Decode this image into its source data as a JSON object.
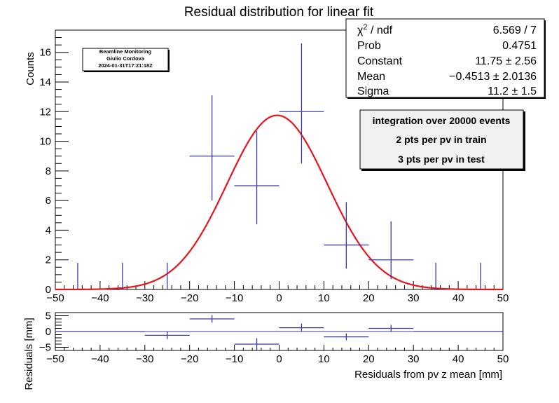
{
  "title": "Residual distribution for linear fit",
  "stats": [
    {
      "label": "χ² / ndf",
      "label_main": "χ",
      "label_sup": "2",
      "label_rest": " / ndf",
      "value": "6.569 / 7"
    },
    {
      "label": "Prob",
      "value": "0.4751"
    },
    {
      "label": "Constant",
      "value": "11.75 ± 2.56"
    },
    {
      "label": "Mean",
      "value": "−0.4513 ± 2.0136"
    },
    {
      "label": "Sigma",
      "value": "11.2 ± 1.5"
    }
  ],
  "info_box": [
    "integration over 20000 events",
    "2 pts per pv in train",
    "3 pts per pv in test"
  ],
  "stamp": [
    "Beamline Monitoring",
    "Giulio Cordova",
    "2024-01-31T17:21:18Z"
  ],
  "colors": {
    "data": "#3b3ba8",
    "fit": "#e8141c",
    "frame": "#000000"
  },
  "chart_data": [
    {
      "type": "scatter",
      "title": "Residual distribution for linear fit",
      "ylabel": "Counts",
      "xlim": [
        -50,
        50
      ],
      "ylim": [
        0,
        17.5
      ],
      "x_ticks": [
        -50,
        -40,
        -30,
        -20,
        -10,
        0,
        10,
        20,
        30,
        40,
        50
      ],
      "y_ticks": [
        0,
        2,
        4,
        6,
        8,
        10,
        12,
        14,
        16
      ],
      "grid": false,
      "bins": [
        {
          "x": -45,
          "xerr": 5,
          "y": 0,
          "yerr_low": 0,
          "yerr_high": 1.8
        },
        {
          "x": -35,
          "xerr": 5,
          "y": 0,
          "yerr_low": 0,
          "yerr_high": 1.8
        },
        {
          "x": -25,
          "xerr": 5,
          "y": 0,
          "yerr_low": 0,
          "yerr_high": 1.8
        },
        {
          "x": -15,
          "xerr": 5,
          "y": 9,
          "yerr_low": 3.0,
          "yerr_high": 4.1
        },
        {
          "x": -5,
          "xerr": 5,
          "y": 7,
          "yerr_low": 2.6,
          "yerr_high": 3.7
        },
        {
          "x": 5,
          "xerr": 5,
          "y": 12,
          "yerr_low": 3.5,
          "yerr_high": 4.6
        },
        {
          "x": 15,
          "xerr": 5,
          "y": 3,
          "yerr_low": 1.6,
          "yerr_high": 2.9
        },
        {
          "x": 25,
          "xerr": 5,
          "y": 2,
          "yerr_low": 1.3,
          "yerr_high": 2.6
        },
        {
          "x": 35,
          "xerr": 5,
          "y": 0,
          "yerr_low": 0,
          "yerr_high": 1.8
        },
        {
          "x": 45,
          "xerr": 5,
          "y": 0,
          "yerr_low": 0,
          "yerr_high": 1.8
        }
      ],
      "fit": {
        "type": "gaussian",
        "constant": 11.75,
        "mean": -0.4513,
        "sigma": 11.2
      }
    },
    {
      "type": "scatter",
      "xlabel": "Residuals from pv z mean  [mm]",
      "ylabel": "Residuals [mm]",
      "xlim": [
        -50,
        50
      ],
      "ylim": [
        -6,
        6
      ],
      "x_ticks": [
        -50,
        -40,
        -30,
        -20,
        -10,
        0,
        10,
        20,
        30,
        40,
        50
      ],
      "y_ticks": [
        -5,
        0,
        5
      ],
      "grid": false,
      "bins": [
        {
          "x": -45,
          "xerr": 5,
          "y": 0,
          "yerr": 0
        },
        {
          "x": -35,
          "xerr": 5,
          "y": 0,
          "yerr": 0
        },
        {
          "x": -25,
          "xerr": 5,
          "y": -1.2,
          "yerr": 1.2
        },
        {
          "x": -15,
          "xerr": 5,
          "y": 4.0,
          "yerr": 1.2
        },
        {
          "x": -5,
          "xerr": 5,
          "y": -4.0,
          "yerr": 1.9
        },
        {
          "x": 5,
          "xerr": 5,
          "y": 1.2,
          "yerr": 1.3
        },
        {
          "x": 15,
          "xerr": 5,
          "y": -1.7,
          "yerr": 1.1
        },
        {
          "x": 25,
          "xerr": 5,
          "y": 1.0,
          "yerr": 1.1
        },
        {
          "x": 35,
          "xerr": 5,
          "y": 0,
          "yerr": 0
        },
        {
          "x": 45,
          "xerr": 5,
          "y": 0,
          "yerr": 0
        }
      ]
    }
  ]
}
